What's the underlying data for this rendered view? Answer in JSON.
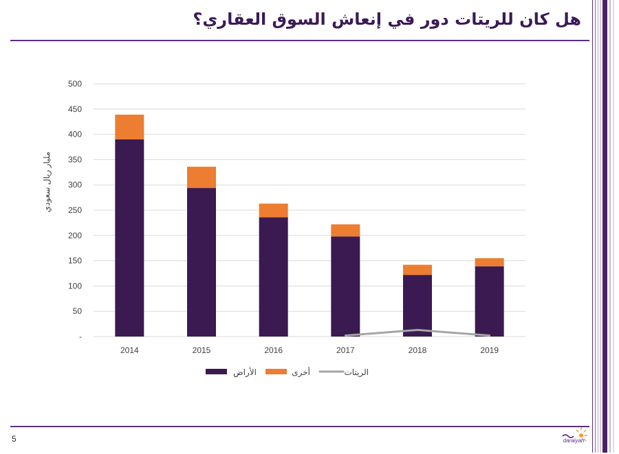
{
  "slide": {
    "title": "هل كان للريتات دور في إنعاش السوق العقاري؟",
    "page_number": "5",
    "logo_text": "daraiyah"
  },
  "colors": {
    "primary_purple": "#3a1a51",
    "accent_orange": "#ed7d31",
    "reit_gray": "#a5a5a5",
    "rule_purple": "#5b2d82",
    "grid": "#d9d9d9"
  },
  "chart_data": {
    "type": "bar",
    "stacked": true,
    "categories": [
      "2014",
      "2015",
      "2016",
      "2017",
      "2018",
      "2019"
    ],
    "series": [
      {
        "name": "الأراض",
        "kind": "bar",
        "color": "#3a1a51",
        "values": [
          390,
          294,
          236,
          198,
          122,
          139
        ]
      },
      {
        "name": "أخرى",
        "kind": "bar",
        "color": "#ed7d31",
        "values": [
          49,
          42,
          27,
          24,
          20,
          16
        ]
      },
      {
        "name": "الريتات",
        "kind": "line",
        "color": "#a5a5a5",
        "values": [
          null,
          null,
          null,
          2,
          13,
          2
        ]
      }
    ],
    "ylabel": "مليار ريال سعودي",
    "xlabel": "",
    "ylim": [
      0,
      500
    ],
    "yticks": [
      0,
      50,
      100,
      150,
      200,
      250,
      300,
      350,
      400,
      450,
      500
    ],
    "ytick_labels": [
      "-",
      "50",
      "100",
      "150",
      "200",
      "250",
      "300",
      "350",
      "400",
      "450",
      "500"
    ],
    "grid": true,
    "legend_position": "bottom"
  }
}
